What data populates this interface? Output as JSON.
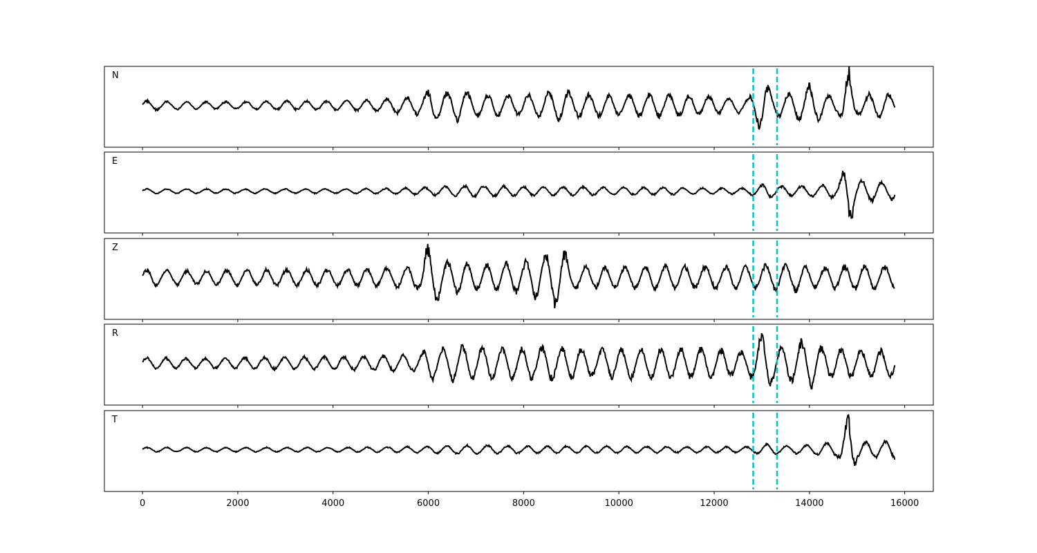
{
  "chart_data": {
    "type": "line",
    "xlim": [
      -800,
      16600
    ],
    "x_ticks": [
      0,
      2000,
      4000,
      6000,
      8000,
      10000,
      12000,
      14000,
      16000
    ],
    "x_tick_labels": [
      "0",
      "2000",
      "4000",
      "6000",
      "8000",
      "10000",
      "12000",
      "14000",
      "16000"
    ],
    "grid": false,
    "legend": "none",
    "line_color": "#000000",
    "marker_color": "#00c5c5",
    "markers_x": [
      12820,
      13320
    ],
    "ylim": [
      -1.2,
      1.2
    ],
    "panels": [
      {
        "label": "N",
        "envelope": [
          [
            0,
            0.13
          ],
          [
            1000,
            0.1
          ],
          [
            2000,
            0.1
          ],
          [
            3000,
            0.12
          ],
          [
            4000,
            0.12
          ],
          [
            5000,
            0.16
          ],
          [
            5400,
            0.22
          ],
          [
            5900,
            0.26
          ],
          [
            6050,
            0.48
          ],
          [
            6300,
            0.32
          ],
          [
            6600,
            0.45
          ],
          [
            7000,
            0.28
          ],
          [
            7400,
            0.3
          ],
          [
            8000,
            0.27
          ],
          [
            8800,
            0.4
          ],
          [
            9000,
            0.32
          ],
          [
            10000,
            0.27
          ],
          [
            11000,
            0.3
          ],
          [
            12000,
            0.24
          ],
          [
            12700,
            0.18
          ],
          [
            13050,
            0.75
          ],
          [
            13200,
            0.3
          ],
          [
            13600,
            0.3
          ],
          [
            14000,
            0.55
          ],
          [
            14300,
            0.32
          ],
          [
            14600,
            0.22
          ],
          [
            14830,
            0.95
          ],
          [
            15000,
            0.25
          ],
          [
            15500,
            0.35
          ],
          [
            15800,
            0.25
          ]
        ]
      },
      {
        "label": "E",
        "envelope": [
          [
            0,
            0.06
          ],
          [
            2000,
            0.06
          ],
          [
            4000,
            0.06
          ],
          [
            5000,
            0.07
          ],
          [
            6000,
            0.1
          ],
          [
            6600,
            0.14
          ],
          [
            7000,
            0.15
          ],
          [
            7500,
            0.14
          ],
          [
            8000,
            0.12
          ],
          [
            9000,
            0.12
          ],
          [
            10000,
            0.1
          ],
          [
            11000,
            0.1
          ],
          [
            12000,
            0.08
          ],
          [
            12700,
            0.08
          ],
          [
            13100,
            0.2
          ],
          [
            13500,
            0.12
          ],
          [
            14000,
            0.15
          ],
          [
            14600,
            0.18
          ],
          [
            14830,
            0.9
          ],
          [
            15000,
            0.3
          ],
          [
            15500,
            0.25
          ],
          [
            15800,
            0.2
          ]
        ]
      },
      {
        "label": "Z",
        "envelope": [
          [
            0,
            0.22
          ],
          [
            1000,
            0.18
          ],
          [
            2000,
            0.2
          ],
          [
            3000,
            0.22
          ],
          [
            4000,
            0.22
          ],
          [
            5000,
            0.24
          ],
          [
            5800,
            0.3
          ],
          [
            6000,
            0.85
          ],
          [
            6300,
            0.45
          ],
          [
            6600,
            0.42
          ],
          [
            7000,
            0.36
          ],
          [
            8000,
            0.4
          ],
          [
            8800,
            0.82
          ],
          [
            9000,
            0.3
          ],
          [
            10000,
            0.28
          ],
          [
            11000,
            0.3
          ],
          [
            12000,
            0.3
          ],
          [
            12800,
            0.3
          ],
          [
            13300,
            0.35
          ],
          [
            13700,
            0.38
          ],
          [
            14000,
            0.25
          ],
          [
            15000,
            0.32
          ],
          [
            15800,
            0.28
          ]
        ]
      },
      {
        "label": "R",
        "envelope": [
          [
            0,
            0.15
          ],
          [
            1000,
            0.13
          ],
          [
            2000,
            0.15
          ],
          [
            3000,
            0.17
          ],
          [
            4000,
            0.17
          ],
          [
            5000,
            0.2
          ],
          [
            5800,
            0.22
          ],
          [
            6050,
            0.5
          ],
          [
            6300,
            0.38
          ],
          [
            6600,
            0.48
          ],
          [
            7000,
            0.4
          ],
          [
            7400,
            0.46
          ],
          [
            8000,
            0.4
          ],
          [
            8800,
            0.45
          ],
          [
            9500,
            0.35
          ],
          [
            10000,
            0.4
          ],
          [
            11000,
            0.4
          ],
          [
            12000,
            0.38
          ],
          [
            12700,
            0.3
          ],
          [
            13050,
            0.8
          ],
          [
            13300,
            0.4
          ],
          [
            14000,
            0.65
          ],
          [
            14300,
            0.4
          ],
          [
            15000,
            0.35
          ],
          [
            15800,
            0.35
          ]
        ]
      },
      {
        "label": "T",
        "envelope": [
          [
            0,
            0.06
          ],
          [
            2000,
            0.06
          ],
          [
            4000,
            0.06
          ],
          [
            5000,
            0.07
          ],
          [
            6000,
            0.09
          ],
          [
            7000,
            0.12
          ],
          [
            8000,
            0.1
          ],
          [
            10000,
            0.09
          ],
          [
            12000,
            0.08
          ],
          [
            12800,
            0.08
          ],
          [
            13100,
            0.15
          ],
          [
            13500,
            0.1
          ],
          [
            14000,
            0.12
          ],
          [
            14600,
            0.2
          ],
          [
            14830,
            0.95
          ],
          [
            15000,
            0.25
          ],
          [
            15500,
            0.2
          ],
          [
            15800,
            0.25
          ]
        ]
      }
    ]
  }
}
